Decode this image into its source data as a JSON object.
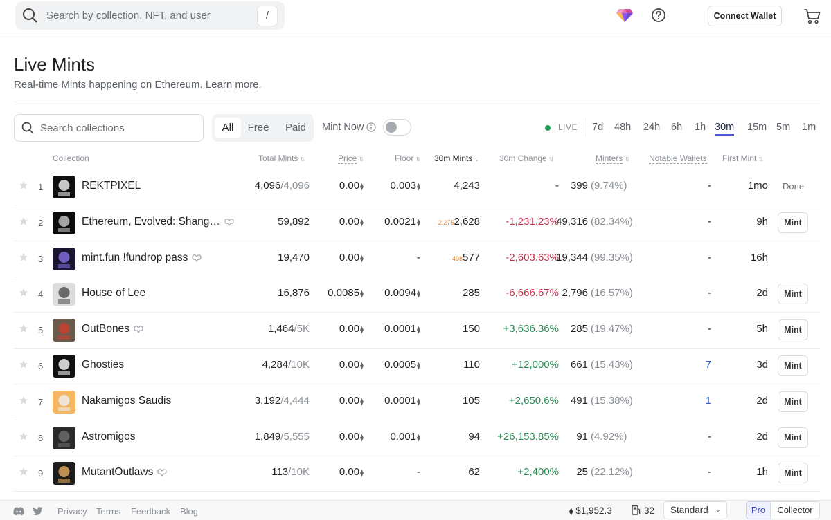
{
  "header": {
    "search_placeholder": "Search by collection, NFT, and user",
    "search_shortcut": "/",
    "connect_wallet_label": "Connect Wallet"
  },
  "page": {
    "title": "Live Mints",
    "subtitle": "Real-time Mints happening on Ethereum.",
    "learn_more": "Learn more"
  },
  "filters": {
    "collection_search_placeholder": "Search collections",
    "type_tabs": [
      "All",
      "Free",
      "Paid"
    ],
    "active_type": "All",
    "mint_now_label": "Mint Now",
    "live_label": "LIVE",
    "timeframes": [
      "7d",
      "48h",
      "24h",
      "6h",
      "1h",
      "30m",
      "15m",
      "5m",
      "1m"
    ],
    "active_timeframe": "30m"
  },
  "table": {
    "columns": [
      "Collection",
      "Total Mints",
      "Price",
      "Floor",
      "30m Mints",
      "30m Change",
      "Minters",
      "Notable Wallets",
      "First Mint"
    ],
    "rows": [
      {
        "rank": "1",
        "name": "REKTPIXEL",
        "flag": false,
        "total_minted": "4,096",
        "total_supply": "/4,096",
        "price": "0.00",
        "floor": "0.003",
        "prev": "",
        "mints": "4,243",
        "change": "-",
        "change_class": "",
        "minters": "399",
        "minters_pct": "(9.74%)",
        "notable": "-",
        "notable_class": "",
        "first_mint": "1mo",
        "action": "Done"
      },
      {
        "rank": "2",
        "name": "Ethereum, Evolved: Shang…",
        "flag": true,
        "total_minted": "59,892",
        "total_supply": "",
        "price": "0.00",
        "floor": "0.0021",
        "prev": "2,275",
        "mints": "2,628",
        "change": "-1,231.23%",
        "change_class": "red",
        "minters": "49,316",
        "minters_pct": "(82.34%)",
        "notable": "-",
        "notable_class": "",
        "first_mint": "9h",
        "action": "Mint"
      },
      {
        "rank": "3",
        "name": "mint.fun !fundrop pass",
        "flag": true,
        "total_minted": "19,470",
        "total_supply": "",
        "price": "0.00",
        "floor": "-",
        "prev": "498",
        "mints": "577",
        "change": "-2,603.63%",
        "change_class": "red",
        "minters": "19,344",
        "minters_pct": "(99.35%)",
        "notable": "-",
        "notable_class": "",
        "first_mint": "16h",
        "action": ""
      },
      {
        "rank": "4",
        "name": "House of Lee",
        "flag": false,
        "total_minted": "16,876",
        "total_supply": "",
        "price": "0.0085",
        "floor": "0.0094",
        "prev": "",
        "mints": "285",
        "change": "-6,666.67%",
        "change_class": "red",
        "minters": "2,796",
        "minters_pct": "(16.57%)",
        "notable": "-",
        "notable_class": "",
        "first_mint": "2d",
        "action": "Mint"
      },
      {
        "rank": "5",
        "name": "OutBones",
        "flag": true,
        "total_minted": "1,464",
        "total_supply": "/5K",
        "price": "0.00",
        "floor": "0.0001",
        "prev": "",
        "mints": "150",
        "change": "+3,636.36%",
        "change_class": "green",
        "minters": "285",
        "minters_pct": "(19.47%)",
        "notable": "-",
        "notable_class": "",
        "first_mint": "5h",
        "action": "Mint"
      },
      {
        "rank": "6",
        "name": "Ghosties",
        "flag": false,
        "total_minted": "4,284",
        "total_supply": "/10K",
        "price": "0.00",
        "floor": "0.0005",
        "prev": "",
        "mints": "110",
        "change": "+12,000%",
        "change_class": "green",
        "minters": "661",
        "minters_pct": "(15.43%)",
        "notable": "7",
        "notable_class": "blue",
        "first_mint": "3d",
        "action": "Mint"
      },
      {
        "rank": "7",
        "name": "Nakamigos Saudis",
        "flag": false,
        "total_minted": "3,192",
        "total_supply": "/4,444",
        "price": "0.00",
        "floor": "0.0001",
        "prev": "",
        "mints": "105",
        "change": "+2,650.6%",
        "change_class": "green",
        "minters": "491",
        "minters_pct": "(15.38%)",
        "notable": "1",
        "notable_class": "blue",
        "first_mint": "2d",
        "action": "Mint"
      },
      {
        "rank": "8",
        "name": "Astromigos",
        "flag": false,
        "total_minted": "1,849",
        "total_supply": "/5,555",
        "price": "0.00",
        "floor": "0.001",
        "prev": "",
        "mints": "94",
        "change": "+26,153.85%",
        "change_class": "green",
        "minters": "91",
        "minters_pct": "(4.92%)",
        "notable": "-",
        "notable_class": "",
        "first_mint": "2d",
        "action": "Mint"
      },
      {
        "rank": "9",
        "name": "MutantOutlaws",
        "flag": true,
        "total_minted": "113",
        "total_supply": "/10K",
        "price": "0.00",
        "floor": "-",
        "prev": "",
        "mints": "62",
        "change": "+2,400%",
        "change_class": "green",
        "minters": "25",
        "minters_pct": "(22.12%)",
        "notable": "-",
        "notable_class": "",
        "first_mint": "1h",
        "action": "Mint"
      }
    ]
  },
  "footer": {
    "links": [
      "Privacy",
      "Terms",
      "Feedback",
      "Blog"
    ],
    "eth_price": "$1,952.3",
    "gas": "32",
    "gas_mode": "Standard",
    "mode_pro": "Pro",
    "mode_collector": "Collector"
  }
}
